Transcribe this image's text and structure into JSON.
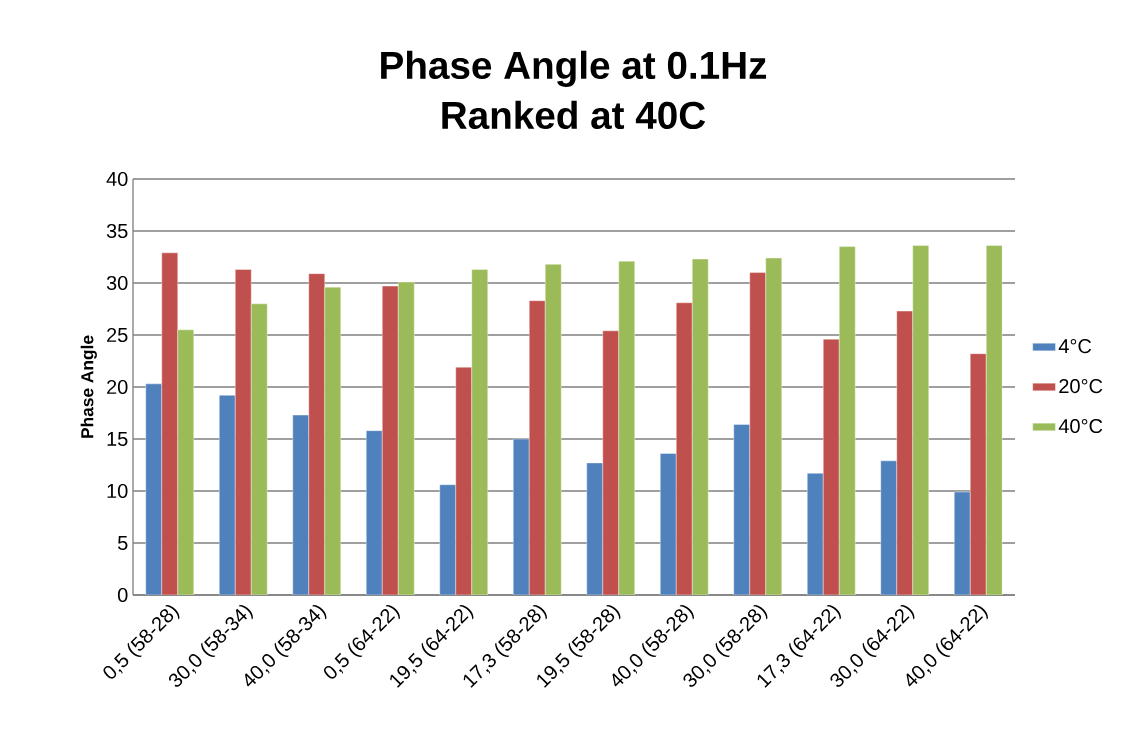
{
  "chart_data": {
    "type": "bar",
    "title": "Phase Angle at 0.1Hz",
    "subtitle": "Ranked at 40C",
    "ylabel": "Phase Angle",
    "categories": [
      "0,5 (58-28)",
      "30,0 (58-34)",
      "40,0 (58-34)",
      "0,5 (64-22)",
      "19,5 (64-22)",
      "17,3 (58-28)",
      "19,5 (58-28)",
      "40,0 (58-28)",
      "30,0 (58-28)",
      "17,3 (64-22)",
      "30,0 (64-22)",
      "40,0 (64-22)"
    ],
    "series": [
      {
        "name": "4°C",
        "color": "#4f81bd",
        "values": [
          20.3,
          19.2,
          17.3,
          15.8,
          10.6,
          15.0,
          12.7,
          13.6,
          16.4,
          11.7,
          12.9,
          9.9
        ]
      },
      {
        "name": "20°C",
        "color": "#c0504d",
        "values": [
          32.9,
          31.3,
          30.9,
          29.7,
          21.9,
          28.3,
          25.4,
          28.1,
          31.0,
          24.6,
          27.3,
          23.2
        ]
      },
      {
        "name": "40°C",
        "color": "#9bbb59",
        "values": [
          25.5,
          28.0,
          29.6,
          30.1,
          31.3,
          31.8,
          32.1,
          32.3,
          32.4,
          33.5,
          33.6,
          33.6
        ]
      }
    ],
    "ylim": [
      0,
      40
    ],
    "yticks": [
      0,
      5,
      10,
      15,
      20,
      25,
      30,
      35,
      40
    ],
    "grid": "y",
    "legend": "right"
  }
}
